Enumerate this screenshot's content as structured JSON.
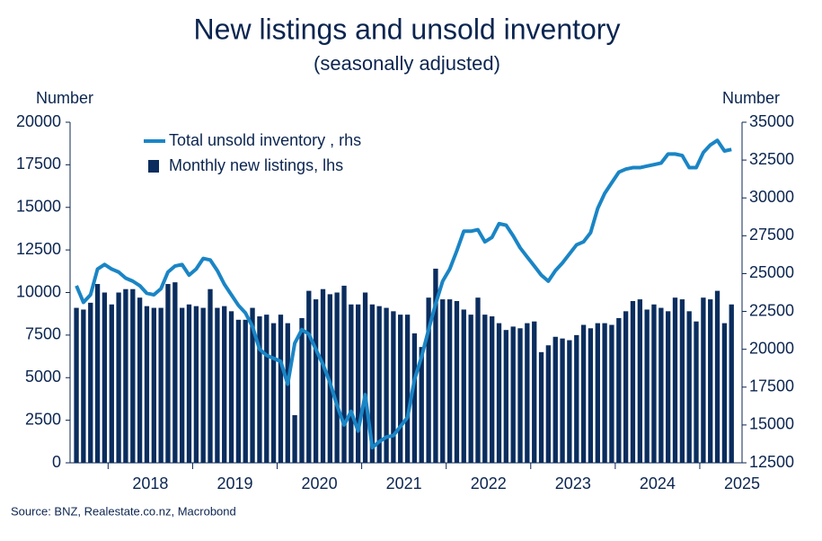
{
  "chart_data": {
    "type": "combo",
    "title": "New listings and unsold inventory",
    "subtitle": "(seasonally adjusted)",
    "y_label": "Number",
    "y2_label": "Number",
    "source": "Source: BNZ, Realestate.co.nz, Macrobond",
    "x": [
      2017.625,
      2017.708,
      2017.792,
      2017.875,
      2017.958,
      2018.042,
      2018.125,
      2018.208,
      2018.292,
      2018.375,
      2018.458,
      2018.542,
      2018.625,
      2018.708,
      2018.792,
      2018.875,
      2018.958,
      2019.042,
      2019.125,
      2019.208,
      2019.292,
      2019.375,
      2019.458,
      2019.542,
      2019.625,
      2019.708,
      2019.792,
      2019.875,
      2019.958,
      2020.042,
      2020.125,
      2020.208,
      2020.292,
      2020.375,
      2020.458,
      2020.542,
      2020.625,
      2020.708,
      2020.792,
      2020.875,
      2020.958,
      2021.042,
      2021.125,
      2021.208,
      2021.292,
      2021.375,
      2021.458,
      2021.542,
      2021.625,
      2021.708,
      2021.792,
      2021.875,
      2021.958,
      2022.042,
      2022.125,
      2022.208,
      2022.292,
      2022.375,
      2022.458,
      2022.542,
      2022.625,
      2022.708,
      2022.792,
      2022.875,
      2022.958,
      2023.042,
      2023.125,
      2023.208,
      2023.292,
      2023.375,
      2023.458,
      2023.542,
      2023.625,
      2023.708,
      2023.792,
      2023.875,
      2023.958,
      2024.042,
      2024.125,
      2024.208,
      2024.292,
      2024.375,
      2024.458,
      2024.542,
      2024.625,
      2024.708,
      2024.792,
      2024.875,
      2024.958,
      2025.042,
      2025.125,
      2025.208,
      2025.292,
      2025.375
    ],
    "series": [
      {
        "name": "Total unsold inventory , rhs",
        "type": "line",
        "axis": "y2",
        "color": "#1a85c5",
        "values": [
          24200,
          23100,
          23600,
          25300,
          25600,
          25300,
          25100,
          24700,
          24500,
          24200,
          23700,
          23600,
          24000,
          25100,
          25500,
          25600,
          24900,
          25300,
          26000,
          25900,
          25200,
          24300,
          23600,
          22900,
          22400,
          21500,
          20000,
          19600,
          19400,
          19200,
          17700,
          20400,
          21300,
          21000,
          20000,
          19000,
          17800,
          16300,
          15000,
          15900,
          14600,
          17000,
          13500,
          13900,
          14200,
          14300,
          14900,
          15500,
          18000,
          19500,
          21300,
          23000,
          24500,
          25300,
          26500,
          27800,
          27800,
          27900,
          27100,
          27400,
          28300,
          28200,
          27500,
          26700,
          26100,
          25500,
          24900,
          24500,
          25200,
          25700,
          26300,
          26900,
          27100,
          27700,
          29300,
          30300,
          31000,
          31700,
          31900,
          32000,
          32000,
          32100,
          32200,
          32300,
          32900,
          32900,
          32800,
          32000,
          32000,
          33000,
          33500,
          33800,
          33100,
          33200
        ]
      },
      {
        "name": "Monthly new listings, lhs",
        "type": "bar",
        "axis": "y",
        "color": "#0a2d5e",
        "values": [
          9100,
          9000,
          9400,
          10500,
          10000,
          9300,
          10000,
          10200,
          10200,
          9700,
          9200,
          9100,
          9100,
          10500,
          10600,
          9100,
          9300,
          9200,
          9100,
          10200,
          9100,
          9200,
          8900,
          8400,
          8400,
          9100,
          8600,
          8700,
          8200,
          8700,
          8200,
          2800,
          8500,
          10100,
          9600,
          10200,
          9900,
          10000,
          10400,
          9300,
          9300,
          10000,
          9300,
          9200,
          9100,
          8900,
          8700,
          8700,
          7600,
          6800,
          9700,
          11400,
          9600,
          9600,
          9500,
          9000,
          8700,
          9700,
          8700,
          8600,
          8200,
          7800,
          8000,
          7900,
          8200,
          8300,
          6500,
          6900,
          7400,
          7300,
          7200,
          7500,
          8100,
          7900,
          8200,
          8200,
          8100,
          8500,
          8900,
          9500,
          9600,
          9000,
          9300,
          9100,
          8900,
          9700,
          9600,
          8900,
          8300,
          9700,
          9600,
          10100,
          8200,
          9300
        ]
      }
    ],
    "xlim": [
      2017.55,
      2025.5
    ],
    "xticks": [
      {
        "value": 2018.5,
        "label": "2018"
      },
      {
        "value": 2019.5,
        "label": "2019"
      },
      {
        "value": 2020.5,
        "label": "2020"
      },
      {
        "value": 2021.5,
        "label": "2021"
      },
      {
        "value": 2022.5,
        "label": "2022"
      },
      {
        "value": 2023.5,
        "label": "2023"
      },
      {
        "value": 2024.5,
        "label": "2024"
      },
      {
        "value": 2025.5,
        "label": "2025"
      }
    ],
    "ylim": [
      0,
      20000
    ],
    "yticks": [
      0,
      2500,
      5000,
      7500,
      10000,
      12500,
      15000,
      17500,
      20000
    ],
    "y2lim": [
      12500,
      35000
    ],
    "y2ticks": [
      12500,
      15000,
      17500,
      20000,
      22500,
      25000,
      27500,
      30000,
      32500,
      35000
    ],
    "legend": "upper left"
  }
}
